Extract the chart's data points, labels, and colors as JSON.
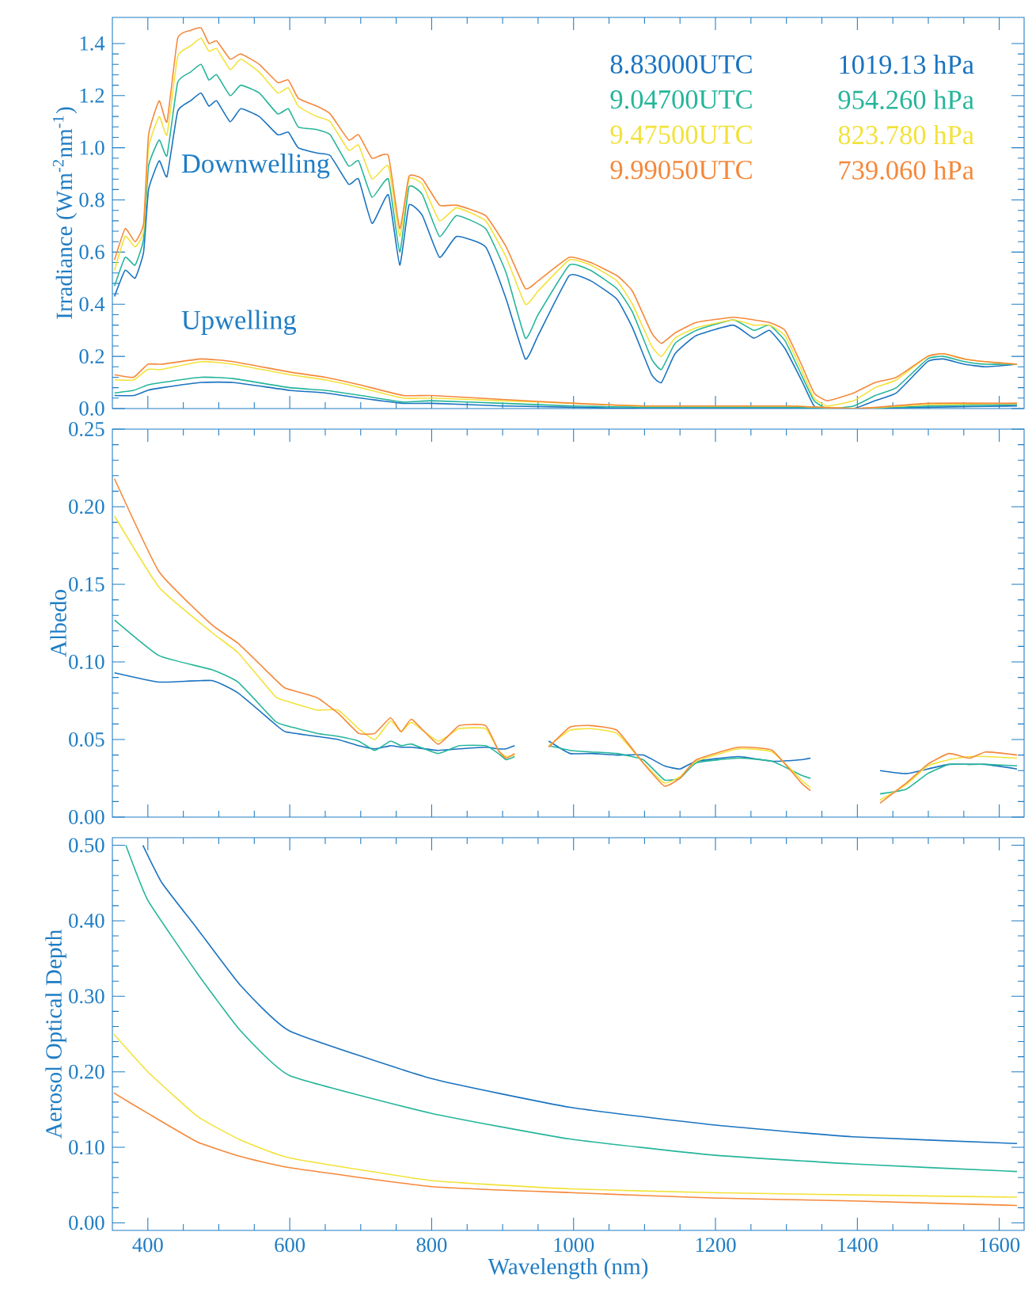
{
  "chart_data": [
    {
      "type": "line",
      "ylabel": "Irradiance (Wm$^{-2}$nm$^{-1}$)",
      "xlim": [
        350,
        1635
      ],
      "ylim": [
        0,
        1.5
      ],
      "xticks": [
        400,
        600,
        800,
        1000,
        1200,
        1400,
        1600
      ],
      "yticks": [
        {
          "value": 0,
          "label": "0.0"
        },
        0.2,
        0.4,
        0.6,
        0.8,
        {
          "value": 1,
          "label": "1.0"
        },
        1.2,
        1.4
      ],
      "tick_labels": "y",
      "legend": "top right",
      "annotations": [
        "Downwelling",
        "Upwelling",
        "1019.13 hPa",
        "954.260 hPa",
        "823.780 hPa",
        "739.060 hPa"
      ],
      "series": [
        {
          "name": "8.83000UTC",
          "color": "#1a73c0",
          "x": [
            353,
            368,
            382,
            394,
            401,
            416,
            427,
            442,
            460,
            475,
            486,
            497,
            516,
            531,
            557,
            583,
            598,
            612,
            638,
            657,
            683,
            697,
            716,
            739,
            755,
            768,
            787,
            811,
            835,
            876,
            905,
            932,
            950,
            994,
            1024,
            1061,
            1083,
            1110,
            1124,
            1143,
            1173,
            1225,
            1254,
            1276,
            1298,
            1321,
            1339,
            1358,
            1395,
            1425,
            1455,
            1499,
            1521,
            1551,
            1580,
            1625
          ],
          "values": [
            0.43,
            0.53,
            0.5,
            0.6,
            0.84,
            0.95,
            0.89,
            1.14,
            1.18,
            1.21,
            1.16,
            1.18,
            1.1,
            1.15,
            1.12,
            1.05,
            1.06,
            1.0,
            0.98,
            0.97,
            0.86,
            0.88,
            0.71,
            0.82,
            0.55,
            0.78,
            0.74,
            0.58,
            0.66,
            0.62,
            0.42,
            0.19,
            0.28,
            0.51,
            0.49,
            0.42,
            0.31,
            0.13,
            0.1,
            0.21,
            0.28,
            0.32,
            0.27,
            0.3,
            0.23,
            0.11,
            0.01,
            0.0,
            0.0,
            0.03,
            0.06,
            0.18,
            0.19,
            0.17,
            0.16,
            0.17
          ]
        },
        {
          "name": "9.04700UTC",
          "color": "#25b59a",
          "x": [
            353,
            368,
            382,
            394,
            401,
            416,
            427,
            442,
            460,
            475,
            486,
            497,
            516,
            531,
            557,
            583,
            598,
            612,
            638,
            657,
            683,
            697,
            716,
            739,
            755,
            768,
            787,
            811,
            835,
            876,
            905,
            932,
            950,
            994,
            1024,
            1061,
            1083,
            1110,
            1124,
            1143,
            1173,
            1225,
            1254,
            1276,
            1298,
            1321,
            1339,
            1358,
            1395,
            1425,
            1455,
            1499,
            1521,
            1551,
            1580,
            1625
          ],
          "values": [
            0.47,
            0.58,
            0.55,
            0.65,
            0.93,
            1.03,
            0.97,
            1.25,
            1.29,
            1.32,
            1.26,
            1.28,
            1.2,
            1.24,
            1.21,
            1.13,
            1.15,
            1.08,
            1.07,
            1.05,
            0.93,
            0.95,
            0.81,
            0.88,
            0.6,
            0.85,
            0.82,
            0.66,
            0.74,
            0.69,
            0.52,
            0.27,
            0.36,
            0.55,
            0.53,
            0.46,
            0.37,
            0.19,
            0.15,
            0.25,
            0.3,
            0.34,
            0.3,
            0.32,
            0.26,
            0.13,
            0.03,
            0.0,
            0.01,
            0.05,
            0.08,
            0.19,
            0.2,
            0.18,
            0.17,
            0.17
          ]
        },
        {
          "name": "9.47500UTC",
          "color": "#f2e23a",
          "x": [
            353,
            368,
            382,
            394,
            401,
            416,
            427,
            442,
            460,
            475,
            486,
            497,
            516,
            531,
            557,
            583,
            598,
            612,
            638,
            657,
            683,
            697,
            716,
            739,
            755,
            768,
            787,
            811,
            835,
            876,
            905,
            932,
            950,
            994,
            1024,
            1061,
            1083,
            1110,
            1124,
            1143,
            1173,
            1225,
            1254,
            1276,
            1298,
            1321,
            1339,
            1358,
            1395,
            1425,
            1455,
            1499,
            1521,
            1551,
            1580,
            1625
          ],
          "values": [
            0.53,
            0.66,
            0.62,
            0.68,
            1.0,
            1.12,
            1.05,
            1.35,
            1.39,
            1.42,
            1.37,
            1.38,
            1.3,
            1.34,
            1.29,
            1.21,
            1.23,
            1.16,
            1.12,
            1.1,
            0.99,
            1.01,
            0.88,
            0.93,
            0.66,
            0.88,
            0.86,
            0.72,
            0.77,
            0.72,
            0.58,
            0.4,
            0.45,
            0.57,
            0.55,
            0.49,
            0.4,
            0.24,
            0.2,
            0.27,
            0.31,
            0.34,
            0.32,
            0.32,
            0.28,
            0.15,
            0.04,
            0.01,
            0.03,
            0.08,
            0.11,
            0.2,
            0.21,
            0.19,
            0.18,
            0.17
          ]
        },
        {
          "name": "9.99050UTC",
          "color": "#f5883a",
          "x": [
            353,
            368,
            382,
            394,
            401,
            416,
            427,
            442,
            460,
            475,
            486,
            497,
            516,
            531,
            557,
            583,
            598,
            612,
            638,
            657,
            683,
            697,
            716,
            739,
            755,
            768,
            787,
            811,
            835,
            876,
            905,
            932,
            950,
            994,
            1024,
            1061,
            1083,
            1110,
            1124,
            1143,
            1173,
            1225,
            1254,
            1276,
            1298,
            1321,
            1339,
            1358,
            1395,
            1425,
            1455,
            1499,
            1521,
            1551,
            1580,
            1625
          ],
          "values": [
            0.57,
            0.69,
            0.64,
            0.71,
            1.05,
            1.18,
            1.1,
            1.42,
            1.45,
            1.46,
            1.4,
            1.41,
            1.34,
            1.36,
            1.32,
            1.25,
            1.26,
            1.19,
            1.16,
            1.13,
            1.03,
            1.05,
            0.96,
            0.97,
            0.69,
            0.89,
            0.88,
            0.78,
            0.78,
            0.74,
            0.62,
            0.46,
            0.49,
            0.58,
            0.56,
            0.51,
            0.45,
            0.29,
            0.25,
            0.29,
            0.33,
            0.35,
            0.34,
            0.33,
            0.3,
            0.17,
            0.06,
            0.03,
            0.06,
            0.1,
            0.12,
            0.2,
            0.21,
            0.19,
            0.18,
            0.17
          ]
        },
        {
          "color": "#1a73c0",
          "x": [
            353,
            380,
            400,
            420,
            475,
            520,
            600,
            650,
            700,
            760,
            800,
            900,
            1000,
            1100,
            1300,
            1400,
            1500,
            1625
          ],
          "values": [
            0.05,
            0.05,
            0.07,
            0.08,
            0.1,
            0.1,
            0.07,
            0.06,
            0.04,
            0.02,
            0.02,
            0.01,
            0.005,
            0.0,
            0.0,
            0.0,
            0.005,
            0.01
          ]
        },
        {
          "color": "#25b59a",
          "x": [
            353,
            380,
            400,
            420,
            475,
            520,
            600,
            650,
            700,
            760,
            800,
            900,
            1000,
            1100,
            1300,
            1400,
            1500,
            1625
          ],
          "values": [
            0.06,
            0.07,
            0.09,
            0.1,
            0.12,
            0.115,
            0.08,
            0.07,
            0.05,
            0.025,
            0.03,
            0.02,
            0.01,
            0.005,
            0.005,
            0.0,
            0.01,
            0.015
          ]
        },
        {
          "color": "#f2e23a",
          "x": [
            353,
            380,
            400,
            420,
            475,
            520,
            600,
            650,
            700,
            760,
            800,
            900,
            1000,
            1100,
            1300,
            1400,
            1500,
            1625
          ],
          "values": [
            0.11,
            0.11,
            0.15,
            0.15,
            0.18,
            0.17,
            0.13,
            0.11,
            0.08,
            0.04,
            0.04,
            0.03,
            0.02,
            0.01,
            0.01,
            0.0,
            0.015,
            0.02
          ]
        },
        {
          "color": "#f5883a",
          "x": [
            353,
            380,
            400,
            420,
            475,
            520,
            600,
            650,
            700,
            760,
            800,
            900,
            1000,
            1100,
            1300,
            1400,
            1500,
            1625
          ],
          "values": [
            0.13,
            0.12,
            0.17,
            0.17,
            0.19,
            0.18,
            0.14,
            0.12,
            0.09,
            0.05,
            0.05,
            0.035,
            0.02,
            0.01,
            0.01,
            0.0,
            0.02,
            0.02
          ]
        }
      ]
    },
    {
      "type": "line",
      "ylabel": "Albedo",
      "xlim": [
        350,
        1635
      ],
      "ylim": [
        0,
        0.25
      ],
      "xticks": [
        400,
        600,
        800,
        1000,
        1200,
        1400,
        1600
      ],
      "yticks": [
        {
          "value": 0,
          "label": "0.00"
        },
        0.05,
        {
          "value": 0.1,
          "label": "0.10"
        },
        0.15,
        {
          "value": 0.2,
          "label": "0.20"
        },
        0.25
      ],
      "tick_labels": "y",
      "x": [
        353,
        416,
        490,
        527,
        579,
        594,
        638,
        668,
        697,
        720,
        742,
        757,
        772,
        809,
        839,
        876,
        894,
        905,
        917,
        940,
        965,
        995,
        1024,
        1061,
        1098,
        1128,
        1150,
        1173,
        1232,
        1280,
        1321,
        1334,
        1380,
        1432,
        1469,
        1499,
        1529,
        1558,
        1581,
        1625
      ],
      "series": [
        {
          "color": "#1a73c0",
          "values": [
            0.093,
            0.087,
            0.088,
            0.08,
            0.06,
            0.055,
            0.052,
            0.05,
            0.046,
            0.044,
            0.046,
            0.045,
            0.045,
            0.043,
            0.044,
            0.045,
            0.044,
            0.044,
            0.046,
            null,
            0.049,
            0.041,
            0.041,
            0.04,
            0.04,
            0.033,
            0.031,
            0.036,
            0.039,
            0.036,
            0.037,
            0.038,
            null,
            0.03,
            0.028,
            0.031,
            0.034,
            0.034,
            0.034,
            0.031
          ]
        },
        {
          "color": "#25b59a",
          "values": [
            0.127,
            0.104,
            0.095,
            0.087,
            0.062,
            0.059,
            0.054,
            0.052,
            0.049,
            0.043,
            0.049,
            0.046,
            0.047,
            0.041,
            0.046,
            0.046,
            0.041,
            0.037,
            0.039,
            null,
            0.046,
            0.043,
            0.042,
            0.041,
            0.037,
            0.024,
            0.025,
            0.035,
            0.038,
            0.036,
            0.027,
            0.025,
            null,
            0.015,
            0.018,
            0.028,
            0.034,
            0.034,
            0.034,
            0.033
          ]
        },
        {
          "color": "#f2e23a",
          "values": [
            0.194,
            0.148,
            0.119,
            0.106,
            0.078,
            0.075,
            0.069,
            0.069,
            0.057,
            0.05,
            0.062,
            0.055,
            0.061,
            0.049,
            0.057,
            0.057,
            0.043,
            0.039,
            0.04,
            null,
            0.046,
            0.056,
            0.057,
            0.054,
            0.035,
            0.022,
            0.026,
            0.036,
            0.044,
            0.042,
            0.024,
            0.019,
            null,
            0.011,
            0.021,
            0.033,
            0.037,
            0.039,
            0.039,
            0.038
          ]
        },
        {
          "color": "#f5883a",
          "values": [
            0.218,
            0.158,
            0.124,
            0.112,
            0.089,
            0.083,
            0.077,
            0.067,
            0.054,
            0.054,
            0.064,
            0.055,
            0.063,
            0.047,
            0.059,
            0.059,
            0.043,
            0.038,
            0.041,
            null,
            0.045,
            0.058,
            0.059,
            0.056,
            0.035,
            0.02,
            0.025,
            0.037,
            0.045,
            0.043,
            0.022,
            0.017,
            null,
            0.009,
            0.022,
            0.034,
            0.041,
            0.038,
            0.042,
            0.04
          ]
        }
      ]
    },
    {
      "type": "line",
      "xlabel": "Wavelength (nm)",
      "ylabel": "Aerosol Optical Depth",
      "xlim": [
        350,
        1635
      ],
      "ylim": [
        -0.01,
        0.51
      ],
      "xticks": [
        400,
        600,
        800,
        1000,
        1200,
        1400,
        1600
      ],
      "yticks": [
        {
          "value": 0,
          "label": "0.00"
        },
        {
          "value": 0.1,
          "label": "0.10"
        },
        {
          "value": 0.2,
          "label": "0.20"
        },
        {
          "value": 0.3,
          "label": "0.30"
        },
        {
          "value": 0.4,
          "label": "0.40"
        },
        {
          "value": 0.5,
          "label": "0.50"
        }
      ],
      "series": [
        {
          "color": "#1a73c0",
          "x": [
            393,
            420,
            470,
            530,
            600,
            800,
            995,
            1194,
            1393,
            1625
          ],
          "values": [
            0.5,
            0.45,
            0.389,
            0.315,
            0.254,
            0.191,
            0.153,
            0.13,
            0.114,
            0.105
          ]
        },
        {
          "color": "#25b59a",
          "x": [
            369,
            400,
            470,
            530,
            600,
            800,
            995,
            1194,
            1393,
            1625
          ],
          "values": [
            0.5,
            0.427,
            0.33,
            0.255,
            0.195,
            0.145,
            0.111,
            0.09,
            0.078,
            0.068
          ]
        },
        {
          "color": "#f2e23a",
          "x": [
            352,
            400,
            470,
            530,
            600,
            800,
            995,
            1194,
            1393,
            1625
          ],
          "values": [
            0.25,
            0.2,
            0.141,
            0.11,
            0.086,
            0.056,
            0.045,
            0.04,
            0.037,
            0.034
          ]
        },
        {
          "color": "#f5883a",
          "x": [
            352,
            400,
            470,
            530,
            600,
            800,
            995,
            1194,
            1393,
            1625
          ],
          "values": [
            0.172,
            0.145,
            0.107,
            0.088,
            0.073,
            0.048,
            0.04,
            0.033,
            0.029,
            0.023
          ]
        }
      ]
    }
  ]
}
